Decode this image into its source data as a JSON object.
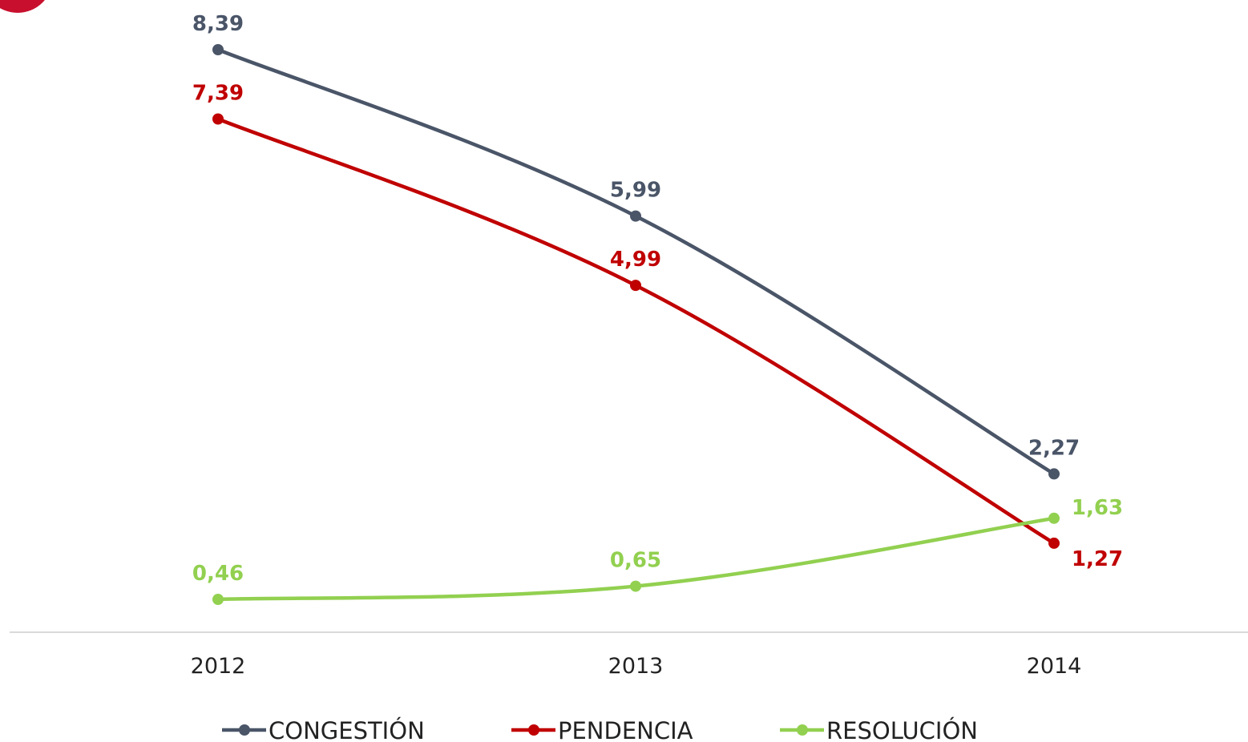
{
  "chart_data": {
    "type": "line",
    "categories": [
      "2012",
      "2013",
      "2014"
    ],
    "series": [
      {
        "name": "CONGESTIÓN",
        "values": [
          8.39,
          5.99,
          2.27
        ],
        "labels": [
          "8,39",
          "5,99",
          "2,27"
        ],
        "color": "#4a5568"
      },
      {
        "name": "PENDENCIA",
        "values": [
          7.39,
          4.99,
          1.27
        ],
        "labels": [
          "7,39",
          "4,99",
          "1,27"
        ],
        "color": "#c00000"
      },
      {
        "name": "RESOLUCIÓN",
        "values": [
          0.46,
          0.65,
          1.63
        ],
        "labels": [
          "0,46",
          "0,65",
          "1,63"
        ],
        "color": "#92d050"
      }
    ],
    "title": "",
    "xlabel": "",
    "ylabel": "",
    "ylim": [
      0,
      9
    ],
    "grid": false,
    "legend": "bottom",
    "smooth": true
  },
  "decor": {
    "badge_color": "#c8102e"
  }
}
